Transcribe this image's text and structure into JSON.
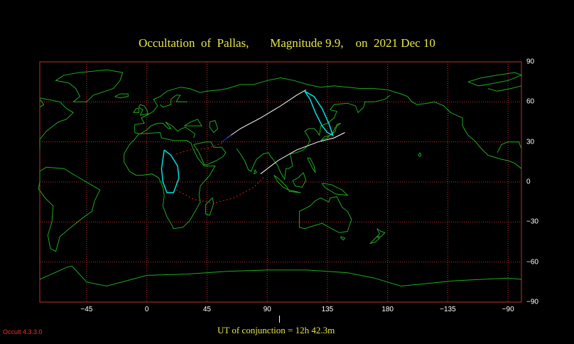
{
  "title": "Occultation  of  Pallas,       Magnitude 9.9,    on  2021 Dec 10",
  "ut_of_conjunction": "UT of conjunction = 12h 42.3m",
  "version": "Occult 4.3.3.0",
  "longitude_ticks": [
    {
      "value": -45,
      "label": "−45"
    },
    {
      "value": 0,
      "label": "0"
    },
    {
      "value": 45,
      "label": "45"
    },
    {
      "value": 90,
      "label": "90"
    },
    {
      "value": 135,
      "label": "135"
    },
    {
      "value": 180,
      "label": "180"
    },
    {
      "value": 225,
      "label": "−135"
    },
    {
      "value": 270,
      "label": "−90"
    }
  ],
  "latitude_ticks": [
    {
      "value": 90,
      "label": "90"
    },
    {
      "value": 60,
      "label": "60"
    },
    {
      "value": 30,
      "label": "30"
    },
    {
      "value": 0,
      "label": "0"
    },
    {
      "value": -30,
      "label": "−30"
    },
    {
      "value": -60,
      "label": "−60"
    },
    {
      "value": -90,
      "label": "−90"
    }
  ],
  "colors": {
    "background": "#000000",
    "grid": "#c03030",
    "coastline": "#1fa81f",
    "path": "#ffffff",
    "path_twilight": "#3030c0",
    "star_limits": "#00e0e0",
    "dotted_limit": "#d02020",
    "title": "#e6e64a",
    "ticks": "#ffffff",
    "version": "#ff2a2a"
  },
  "occultation_path_north": [
    [
      60,
      33
    ],
    [
      70,
      40
    ],
    [
      85,
      48
    ],
    [
      100,
      57
    ],
    [
      112,
      65
    ],
    [
      119,
      69
    ]
  ],
  "occultation_path_south": [
    [
      85,
      6
    ],
    [
      98,
      16
    ],
    [
      112,
      24
    ],
    [
      128,
      30
    ],
    [
      140,
      33
    ],
    [
      148,
      37
    ]
  ],
  "sunrise_sunset_curve_east": [
    [
      118,
      68
    ],
    [
      122,
      62
    ],
    [
      126,
      52
    ],
    [
      131,
      42
    ],
    [
      135,
      37
    ],
    [
      139,
      35
    ],
    [
      136,
      44
    ],
    [
      131,
      55
    ],
    [
      125,
      64
    ],
    [
      118,
      68
    ]
  ],
  "sunrise_sunset_curve_west": [
    [
      13,
      24
    ],
    [
      18,
      20
    ],
    [
      23,
      12
    ],
    [
      24,
      3
    ],
    [
      20,
      -8
    ],
    [
      15,
      -8
    ],
    [
      12,
      0
    ],
    [
      11,
      10
    ],
    [
      13,
      24
    ]
  ],
  "dotted_limit_north": [
    [
      22,
      21
    ],
    [
      32,
      24
    ],
    [
      45,
      25
    ],
    [
      58,
      30
    ]
  ],
  "dotted_limit_south": [
    [
      22,
      -6
    ],
    [
      35,
      -13
    ],
    [
      50,
      -16
    ],
    [
      65,
      -12
    ],
    [
      80,
      -4
    ],
    [
      88,
      4
    ]
  ]
}
